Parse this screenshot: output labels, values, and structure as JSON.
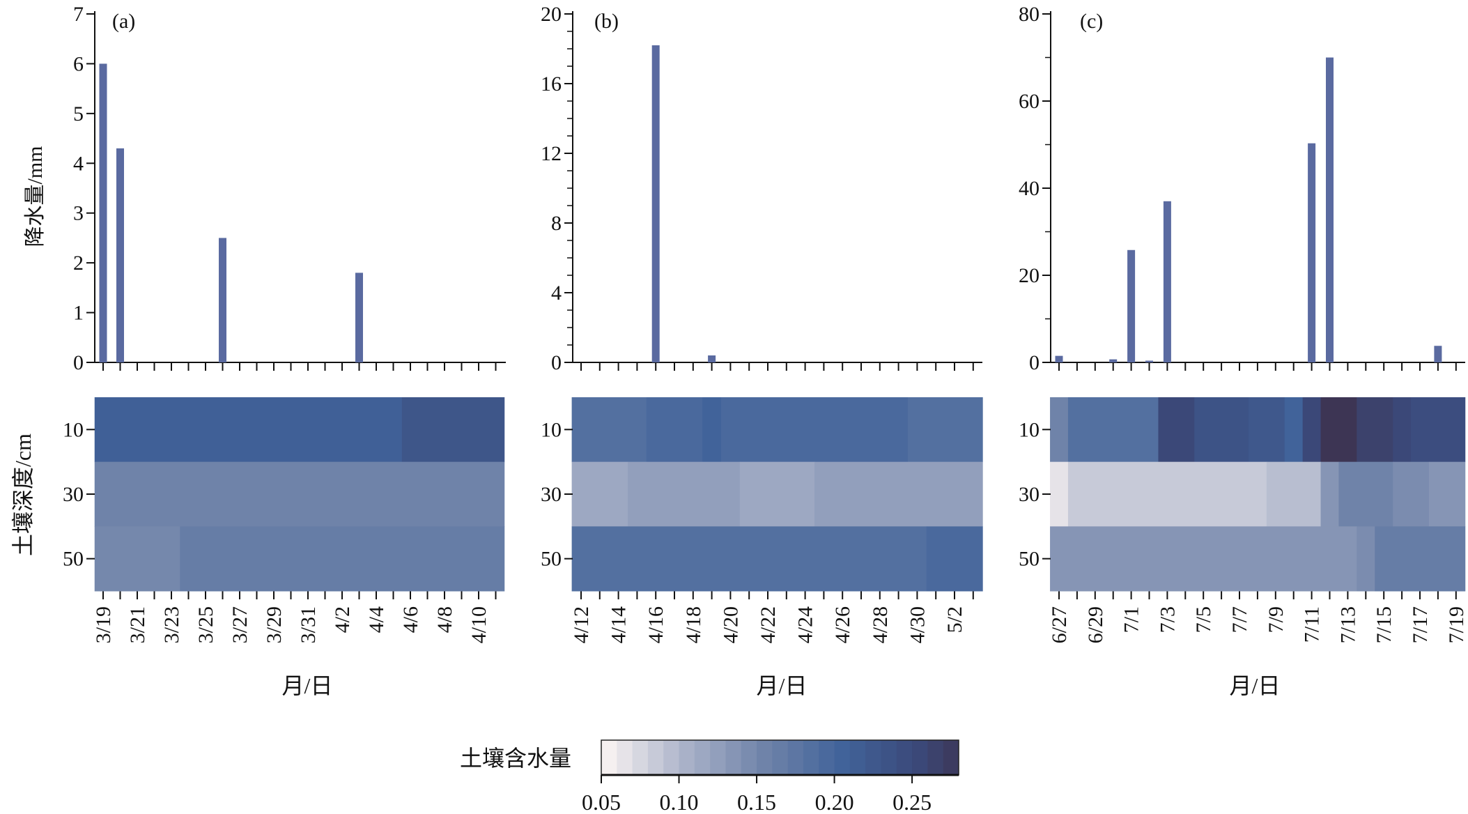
{
  "chart_data": {
    "type": "bar+heatmap",
    "precip_ylabel": "降水量/mm",
    "depth_ylabel": "土壤深度/cm",
    "depth_rows": [
      "10",
      "30",
      "50"
    ],
    "colorbar": {
      "label": "土壤含水量",
      "range": [
        0.05,
        0.28
      ],
      "step": 0.01,
      "ticks": [
        "0.05",
        "0.10",
        "0.15",
        "0.20",
        "0.25"
      ],
      "stops": [
        [
          0.05,
          "#f5f0f0"
        ],
        [
          0.1,
          "#a9b1c8"
        ],
        [
          0.15,
          "#6f83a9"
        ],
        [
          0.2,
          "#41639a"
        ],
        [
          0.25,
          "#3b4878"
        ],
        [
          0.28,
          "#3d3554"
        ]
      ]
    },
    "bar_color": "#5a6aa0",
    "panels": [
      {
        "label": "(a)",
        "xlabel": "月/日",
        "dates": [
          "3/19",
          "3/20",
          "3/21",
          "3/22",
          "3/23",
          "3/24",
          "3/25",
          "3/26",
          "3/27",
          "3/28",
          "3/29",
          "3/30",
          "3/31",
          "4/1",
          "4/2",
          "4/3",
          "4/4",
          "4/5",
          "4/6",
          "4/7",
          "4/8",
          "4/9",
          "4/10",
          "4/11"
        ],
        "xtick_labels": [
          "3/19",
          "3/21",
          "3/23",
          "3/25",
          "3/27",
          "3/29",
          "3/31",
          "4/2",
          "4/4",
          "4/6",
          "4/8",
          "4/10"
        ],
        "ylim": [
          0,
          7
        ],
        "yticks": [
          "0",
          "1",
          "2",
          "3",
          "4",
          "5",
          "6",
          "7"
        ],
        "ytick_values": [
          0,
          1,
          2,
          3,
          4,
          5,
          6,
          7
        ],
        "minor_step": 1,
        "precip": [
          6,
          4.3,
          0,
          0,
          0,
          0,
          0,
          2.5,
          0,
          0,
          0,
          0,
          0,
          0,
          0,
          1.8,
          0,
          0,
          0,
          0,
          0,
          0,
          0,
          0
        ],
        "moisture": {
          "10": [
            [
              0,
              17,
              0.205
            ],
            [
              18,
              23,
              0.225
            ]
          ],
          "30": [
            [
              0,
              23,
              0.15
            ]
          ],
          "50": [
            [
              0,
              4,
              0.145
            ],
            [
              5,
              23,
              0.16
            ]
          ]
        }
      },
      {
        "label": "(b)",
        "xlabel": "月/日",
        "dates": [
          "4/12",
          "4/13",
          "4/14",
          "4/15",
          "4/16",
          "4/17",
          "4/18",
          "4/19",
          "4/20",
          "4/21",
          "4/22",
          "4/23",
          "4/24",
          "4/25",
          "4/26",
          "4/27",
          "4/28",
          "4/29",
          "4/30",
          "5/1",
          "5/2",
          "5/3"
        ],
        "xtick_labels": [
          "4/12",
          "4/14",
          "4/16",
          "4/18",
          "4/20",
          "4/22",
          "4/24",
          "4/26",
          "4/28",
          "4/30",
          "5/2"
        ],
        "ylim": [
          0,
          20
        ],
        "yticks": [
          "0",
          "4",
          "8",
          "12",
          "16",
          "20"
        ],
        "ytick_values": [
          0,
          4,
          8,
          12,
          16,
          20
        ],
        "minor_step": 1,
        "precip": [
          0,
          0,
          0,
          0,
          18.2,
          0,
          0,
          0.4,
          0,
          0,
          0,
          0,
          0,
          0,
          0,
          0,
          0,
          0,
          0,
          0,
          0,
          0
        ],
        "moisture": {
          "10": [
            [
              0,
              3,
              0.18
            ],
            [
              4,
              6,
              0.19
            ],
            [
              7,
              7,
              0.2
            ],
            [
              8,
              17,
              0.19
            ],
            [
              18,
              21,
              0.18
            ]
          ],
          "30": [
            [
              0,
              2,
              0.11
            ],
            [
              3,
              8,
              0.12
            ],
            [
              9,
              12,
              0.11
            ],
            [
              13,
              21,
              0.12
            ]
          ],
          "50": [
            [
              0,
              18,
              0.18
            ],
            [
              19,
              21,
              0.19
            ]
          ]
        }
      },
      {
        "label": "(c)",
        "xlabel": "月/日",
        "dates": [
          "6/27",
          "6/28",
          "6/29",
          "6/30",
          "7/1",
          "7/2",
          "7/3",
          "7/4",
          "7/5",
          "7/6",
          "7/7",
          "7/8",
          "7/9",
          "7/10",
          "7/11",
          "7/12",
          "7/13",
          "7/14",
          "7/15",
          "7/16",
          "7/17",
          "7/18",
          "7/19"
        ],
        "xtick_labels": [
          "6/27",
          "6/29",
          "7/1",
          "7/3",
          "7/5",
          "7/7",
          "7/9",
          "7/11",
          "7/13",
          "7/15",
          "7/17",
          "7/19"
        ],
        "ylim": [
          0,
          80
        ],
        "yticks": [
          "0",
          "20",
          "40",
          "60",
          "80"
        ],
        "ytick_values": [
          0,
          20,
          40,
          60,
          80
        ],
        "minor_step": 10,
        "precip": [
          1.5,
          0,
          0,
          0.7,
          25.8,
          0.4,
          37,
          0,
          0,
          0,
          0,
          0,
          0,
          0,
          50.3,
          70,
          0,
          0,
          0,
          0,
          0,
          3.8,
          0
        ],
        "moisture": {
          "10": [
            [
              0,
              0,
              0.15
            ],
            [
              1,
              5,
              0.18
            ],
            [
              6,
              7,
              0.25
            ],
            [
              8,
              10,
              0.23
            ],
            [
              11,
              12,
              0.22
            ],
            [
              13,
              13,
              0.2
            ],
            [
              14,
              14,
              0.25
            ],
            [
              15,
              16,
              0.28
            ],
            [
              17,
              18,
              0.26
            ],
            [
              19,
              19,
              0.25
            ],
            [
              20,
              22,
              0.24
            ]
          ],
          "30": [
            [
              0,
              0,
              0.06
            ],
            [
              1,
              11,
              0.08
            ],
            [
              12,
              14,
              0.09
            ],
            [
              15,
              15,
              0.13
            ],
            [
              16,
              18,
              0.15
            ],
            [
              19,
              20,
              0.14
            ],
            [
              21,
              22,
              0.13
            ]
          ],
          "50": [
            [
              0,
              16,
              0.13
            ],
            [
              17,
              17,
              0.14
            ],
            [
              18,
              22,
              0.16
            ]
          ]
        }
      }
    ]
  }
}
